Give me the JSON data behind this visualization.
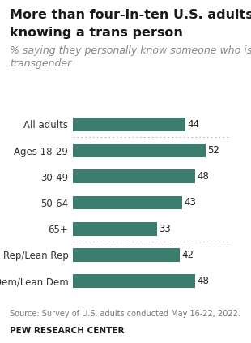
{
  "title_line1": "More than four-in-ten U.S. adults report",
  "title_line2": "knowing a trans person",
  "subtitle": "% saying they personally know someone who is\ntransgender",
  "categories": [
    "All adults",
    "Ages 18-29",
    "30-49",
    "50-64",
    "65+",
    "Rep/Lean Rep",
    "Dem/Lean Dem"
  ],
  "values": [
    44,
    52,
    48,
    43,
    33,
    42,
    48
  ],
  "bar_color": "#3d7d6e",
  "source": "Source: Survey of U.S. adults conducted May 16-22, 2022.",
  "footer": "PEW RESEARCH CENTER",
  "xlim": [
    0,
    62
  ],
  "background_color": "#ffffff",
  "title_fontsize": 11.5,
  "subtitle_fontsize": 9.0,
  "label_fontsize": 8.5,
  "value_fontsize": 8.5,
  "source_fontsize": 7.0,
  "footer_fontsize": 7.5
}
